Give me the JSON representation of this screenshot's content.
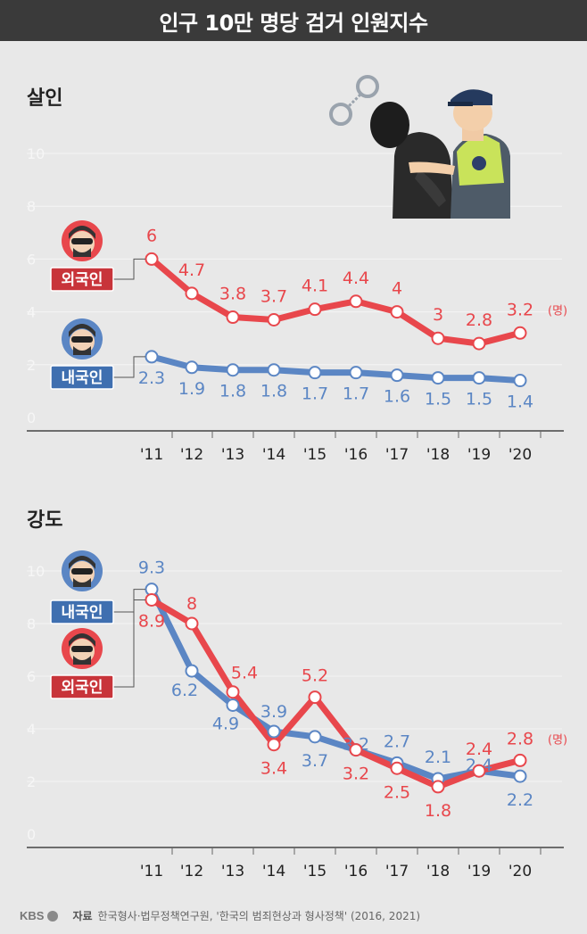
{
  "header": {
    "title": "인구 10만 명당 검거 인원지수"
  },
  "colors": {
    "foreign": "#e8474c",
    "domestic": "#5b86c4",
    "foreign_label_bg": "#c8343a",
    "domestic_label_bg": "#3f6fb0"
  },
  "labels": {
    "foreign": "외국인",
    "domestic": "내국인",
    "unit": "(명)"
  },
  "footer": {
    "logo": "KBS",
    "source_label": "자료",
    "source_text": "한국형사·법무정책연구원, '한국의 범죄현상과 형사정책' (2016, 2021)"
  },
  "chart_data": [
    {
      "type": "line",
      "title": "살인",
      "categories": [
        "'11",
        "'12",
        "'13",
        "'14",
        "'15",
        "'16",
        "'17",
        "'18",
        "'19",
        "'20"
      ],
      "ylim": [
        0,
        10
      ],
      "yticks": [
        0,
        2,
        4,
        6,
        8,
        10
      ],
      "series": [
        {
          "name": "외국인",
          "values": [
            6,
            4.7,
            3.8,
            3.7,
            4.1,
            4.4,
            4,
            3,
            2.8,
            3.2
          ]
        },
        {
          "name": "내국인",
          "values": [
            2.3,
            1.9,
            1.8,
            1.8,
            1.7,
            1.7,
            1.6,
            1.5,
            1.5,
            1.4
          ]
        }
      ]
    },
    {
      "type": "line",
      "title": "강도",
      "categories": [
        "'11",
        "'12",
        "'13",
        "'14",
        "'15",
        "'16",
        "'17",
        "'18",
        "'19",
        "'20"
      ],
      "ylim": [
        0,
        10
      ],
      "yticks": [
        0,
        2,
        4,
        6,
        8,
        10
      ],
      "series": [
        {
          "name": "외국인",
          "values": [
            8.9,
            8,
            5.4,
            3.4,
            5.2,
            3.2,
            2.5,
            1.8,
            2.4,
            2.8
          ]
        },
        {
          "name": "내국인",
          "values": [
            9.3,
            6.2,
            4.9,
            3.9,
            3.7,
            3.2,
            2.7,
            2.1,
            2.4,
            2.2
          ]
        }
      ]
    }
  ]
}
